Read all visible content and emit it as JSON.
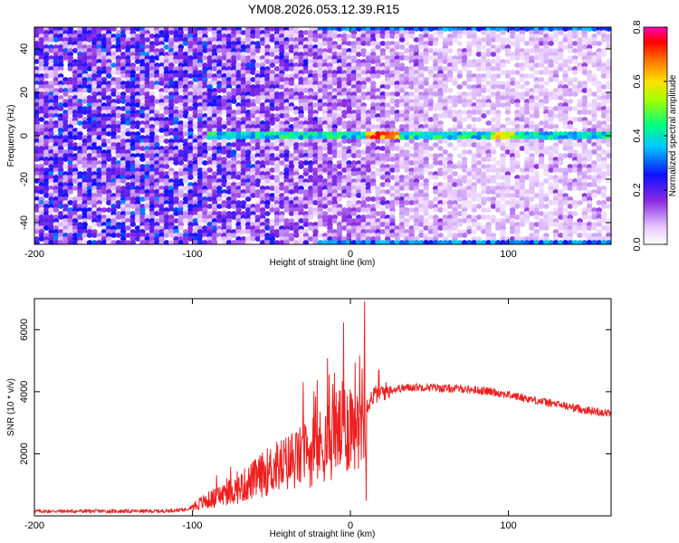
{
  "title": "YM08.2026.053.12.39.R15",
  "colors": {
    "snr_line": "#ee2020",
    "ridge": "#00c8d8"
  },
  "chart_data": [
    {
      "type": "heatmap",
      "xlabel": "Height of straight line (km)",
      "ylabel": "Frequency (Hz)",
      "xlim": [
        -200,
        165
      ],
      "ylim": [
        -50,
        50
      ],
      "xticks": [
        -200,
        -100,
        0,
        100
      ],
      "yticks": [
        -40,
        -20,
        0,
        20,
        40
      ],
      "grid": false,
      "colorbar": {
        "label": "Normalized spectral amplitude",
        "range": [
          0,
          0.8
        ],
        "ticks": [
          0,
          0.2,
          0.4,
          0.6,
          0.8
        ],
        "colormap": "rainbow (white-purple-blue-cyan-green-yellow-orange-red-magenta)"
      },
      "ridge_frequency_hz": 0,
      "ridge_extent_km": [
        -90,
        165
      ],
      "band_edges_hz": [
        -50,
        50
      ]
    },
    {
      "type": "line",
      "xlabel": "Height of straight line (km)",
      "ylabel": "SNR (10 * v/v)",
      "xlim": [
        -200,
        165
      ],
      "ylim": [
        0,
        7000
      ],
      "xticks": [
        -200,
        -100,
        0,
        100
      ],
      "yticks": [
        2000,
        4000,
        6000
      ],
      "grid": false,
      "series": [
        {
          "x": [
            -200,
            -180,
            -160,
            -140,
            -120,
            -105,
            -100,
            -90,
            -80,
            -70,
            -60,
            -50,
            -40,
            -30,
            -20,
            -10,
            0,
            5,
            8,
            10,
            12,
            15,
            20,
            30,
            40,
            50,
            60,
            70,
            80,
            90,
            100,
            110,
            120,
            130,
            140,
            150,
            165
          ],
          "values": [
            150,
            150,
            150,
            150,
            150,
            200,
            300,
            500,
            700,
            900,
            1200,
            1500,
            1700,
            1900,
            2200,
            2600,
            3000,
            3400,
            3600,
            3500,
            3700,
            3900,
            4000,
            4100,
            4150,
            4150,
            4100,
            4100,
            4050,
            4000,
            3900,
            3800,
            3700,
            3600,
            3500,
            3400,
            3300
          ]
        }
      ],
      "spikes": [
        {
          "x": 9,
          "y": 6900
        },
        {
          "x": 10,
          "y": 500
        },
        {
          "x": -30,
          "y": 4300
        },
        {
          "x": -10,
          "y": 4600
        },
        {
          "x": 18,
          "y": 4700
        }
      ]
    }
  ]
}
